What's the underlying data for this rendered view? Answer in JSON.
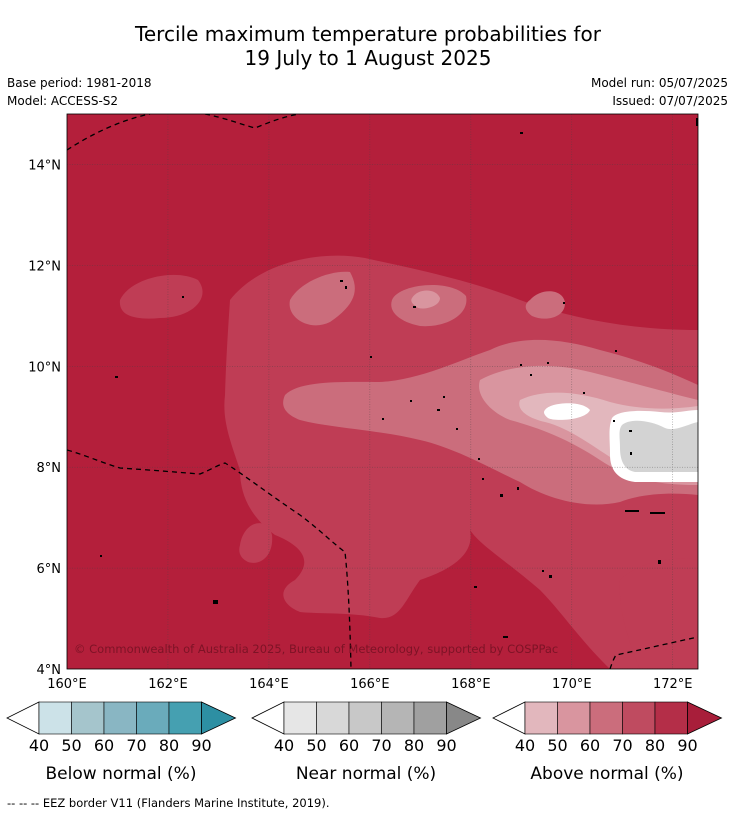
{
  "title": {
    "line1": "Tercile maximum temperature probabilities for",
    "line2": "19 July to 1 August 2025"
  },
  "meta": {
    "base_period": "Base period: 1981-2018",
    "model": "Model: ACCESS-S2",
    "model_run": "Model run: 05/07/2025",
    "issued": "Issued: 07/07/2025"
  },
  "map": {
    "extent": {
      "lon": [
        160,
        172.5
      ],
      "lat": [
        4,
        15
      ]
    },
    "lat_ticks": [
      {
        "value": 4,
        "label": "4°N"
      },
      {
        "value": 6,
        "label": "6°N"
      },
      {
        "value": 8,
        "label": "8°N"
      },
      {
        "value": 10,
        "label": "10°N"
      },
      {
        "value": 12,
        "label": "12°N"
      },
      {
        "value": 14,
        "label": "14°N"
      }
    ],
    "lon_ticks": [
      {
        "value": 160,
        "label": "160°E"
      },
      {
        "value": 162,
        "label": "162°E"
      },
      {
        "value": 164,
        "label": "164°E"
      },
      {
        "value": 166,
        "label": "166°E"
      },
      {
        "value": 168,
        "label": "168°E"
      },
      {
        "value": 170,
        "label": "170°E"
      },
      {
        "value": 172,
        "label": "172°E"
      }
    ],
    "copyright": "© Commonwealth of Australia 2025, Bureau of Meteorology, supported by COSPPac",
    "colors": {
      "above_90": "#b41f3b",
      "above_80": "#bf3d55",
      "above_70": "#cb6d7c",
      "above_60": "#d9959f",
      "above_50": "#e2b7bd",
      "near_normal": "#d3d3d3",
      "border": "#000000"
    }
  },
  "legends": [
    {
      "title": "Below normal (%)",
      "ticks": [
        "40",
        "50",
        "60",
        "70",
        "80",
        "90"
      ],
      "colors": [
        "#cce2e8",
        "#a5c5cc",
        "#89b6c3",
        "#6aabbb",
        "#45a0b1",
        "#2d8fa3"
      ]
    },
    {
      "title": "Near normal (%)",
      "ticks": [
        "40",
        "50",
        "60",
        "70",
        "80",
        "90"
      ],
      "colors": [
        "#e6e6e6",
        "#d8d8d8",
        "#c8c8c8",
        "#b5b5b5",
        "#a0a0a0",
        "#888888"
      ]
    },
    {
      "title": "Above normal (%)",
      "ticks": [
        "40",
        "50",
        "60",
        "70",
        "80",
        "90"
      ],
      "colors": [
        "#e2b7bd",
        "#d9959f",
        "#cb6d7c",
        "#bf4b60",
        "#b42e48",
        "#a81e3a"
      ]
    }
  ],
  "footnote": "--  --  -- EEZ border V11 (Flanders Marine Institute, 2019)."
}
